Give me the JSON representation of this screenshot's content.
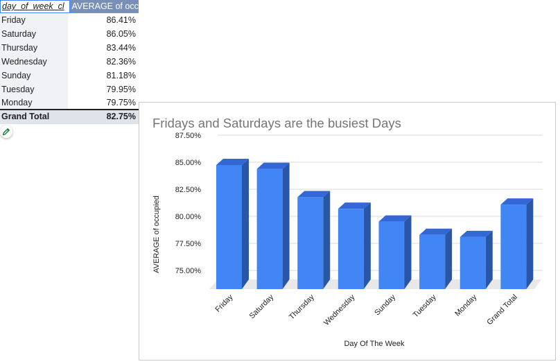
{
  "pivot": {
    "headers": [
      "day_of_week_cl",
      "AVERAGE of occ"
    ],
    "rows": [
      {
        "label": "Friday",
        "value": "86.41%"
      },
      {
        "label": "Saturday",
        "value": "86.05%"
      },
      {
        "label": "Thursday",
        "value": "83.44%"
      },
      {
        "label": "Wednesday",
        "value": "82.36%"
      },
      {
        "label": "Sunday",
        "value": "81.18%"
      },
      {
        "label": "Tuesday",
        "value": "79.95%"
      },
      {
        "label": "Monday",
        "value": "79.75%"
      }
    ],
    "total": {
      "label": "Grand Total",
      "value": "82.75%"
    }
  },
  "edit_icon": "pencil-icon",
  "chart_data": {
    "type": "bar",
    "style": "3d",
    "title": "Fridays and Saturdays are the busiest Days",
    "xlabel": "Day Of The Week",
    "ylabel": "AVERAGE of occupied",
    "categories": [
      "Friday",
      "Saturday",
      "Thursday",
      "Wednesday",
      "Sunday",
      "Tuesday",
      "Monday",
      "Grand Total"
    ],
    "values": [
      86.41,
      86.05,
      83.44,
      82.36,
      81.18,
      79.95,
      79.75,
      82.75
    ],
    "yticks": [
      "75.00%",
      "77.50%",
      "80.00%",
      "82.50%",
      "85.00%",
      "87.50%"
    ],
    "ylim": [
      75,
      87.5
    ],
    "grid": true,
    "legend": "none",
    "colors": {
      "front": "#4285f4",
      "top": "#3367d6",
      "side": "#2a56a8",
      "floor": "#e8e8e8",
      "grid": "#d9d9d9"
    }
  }
}
